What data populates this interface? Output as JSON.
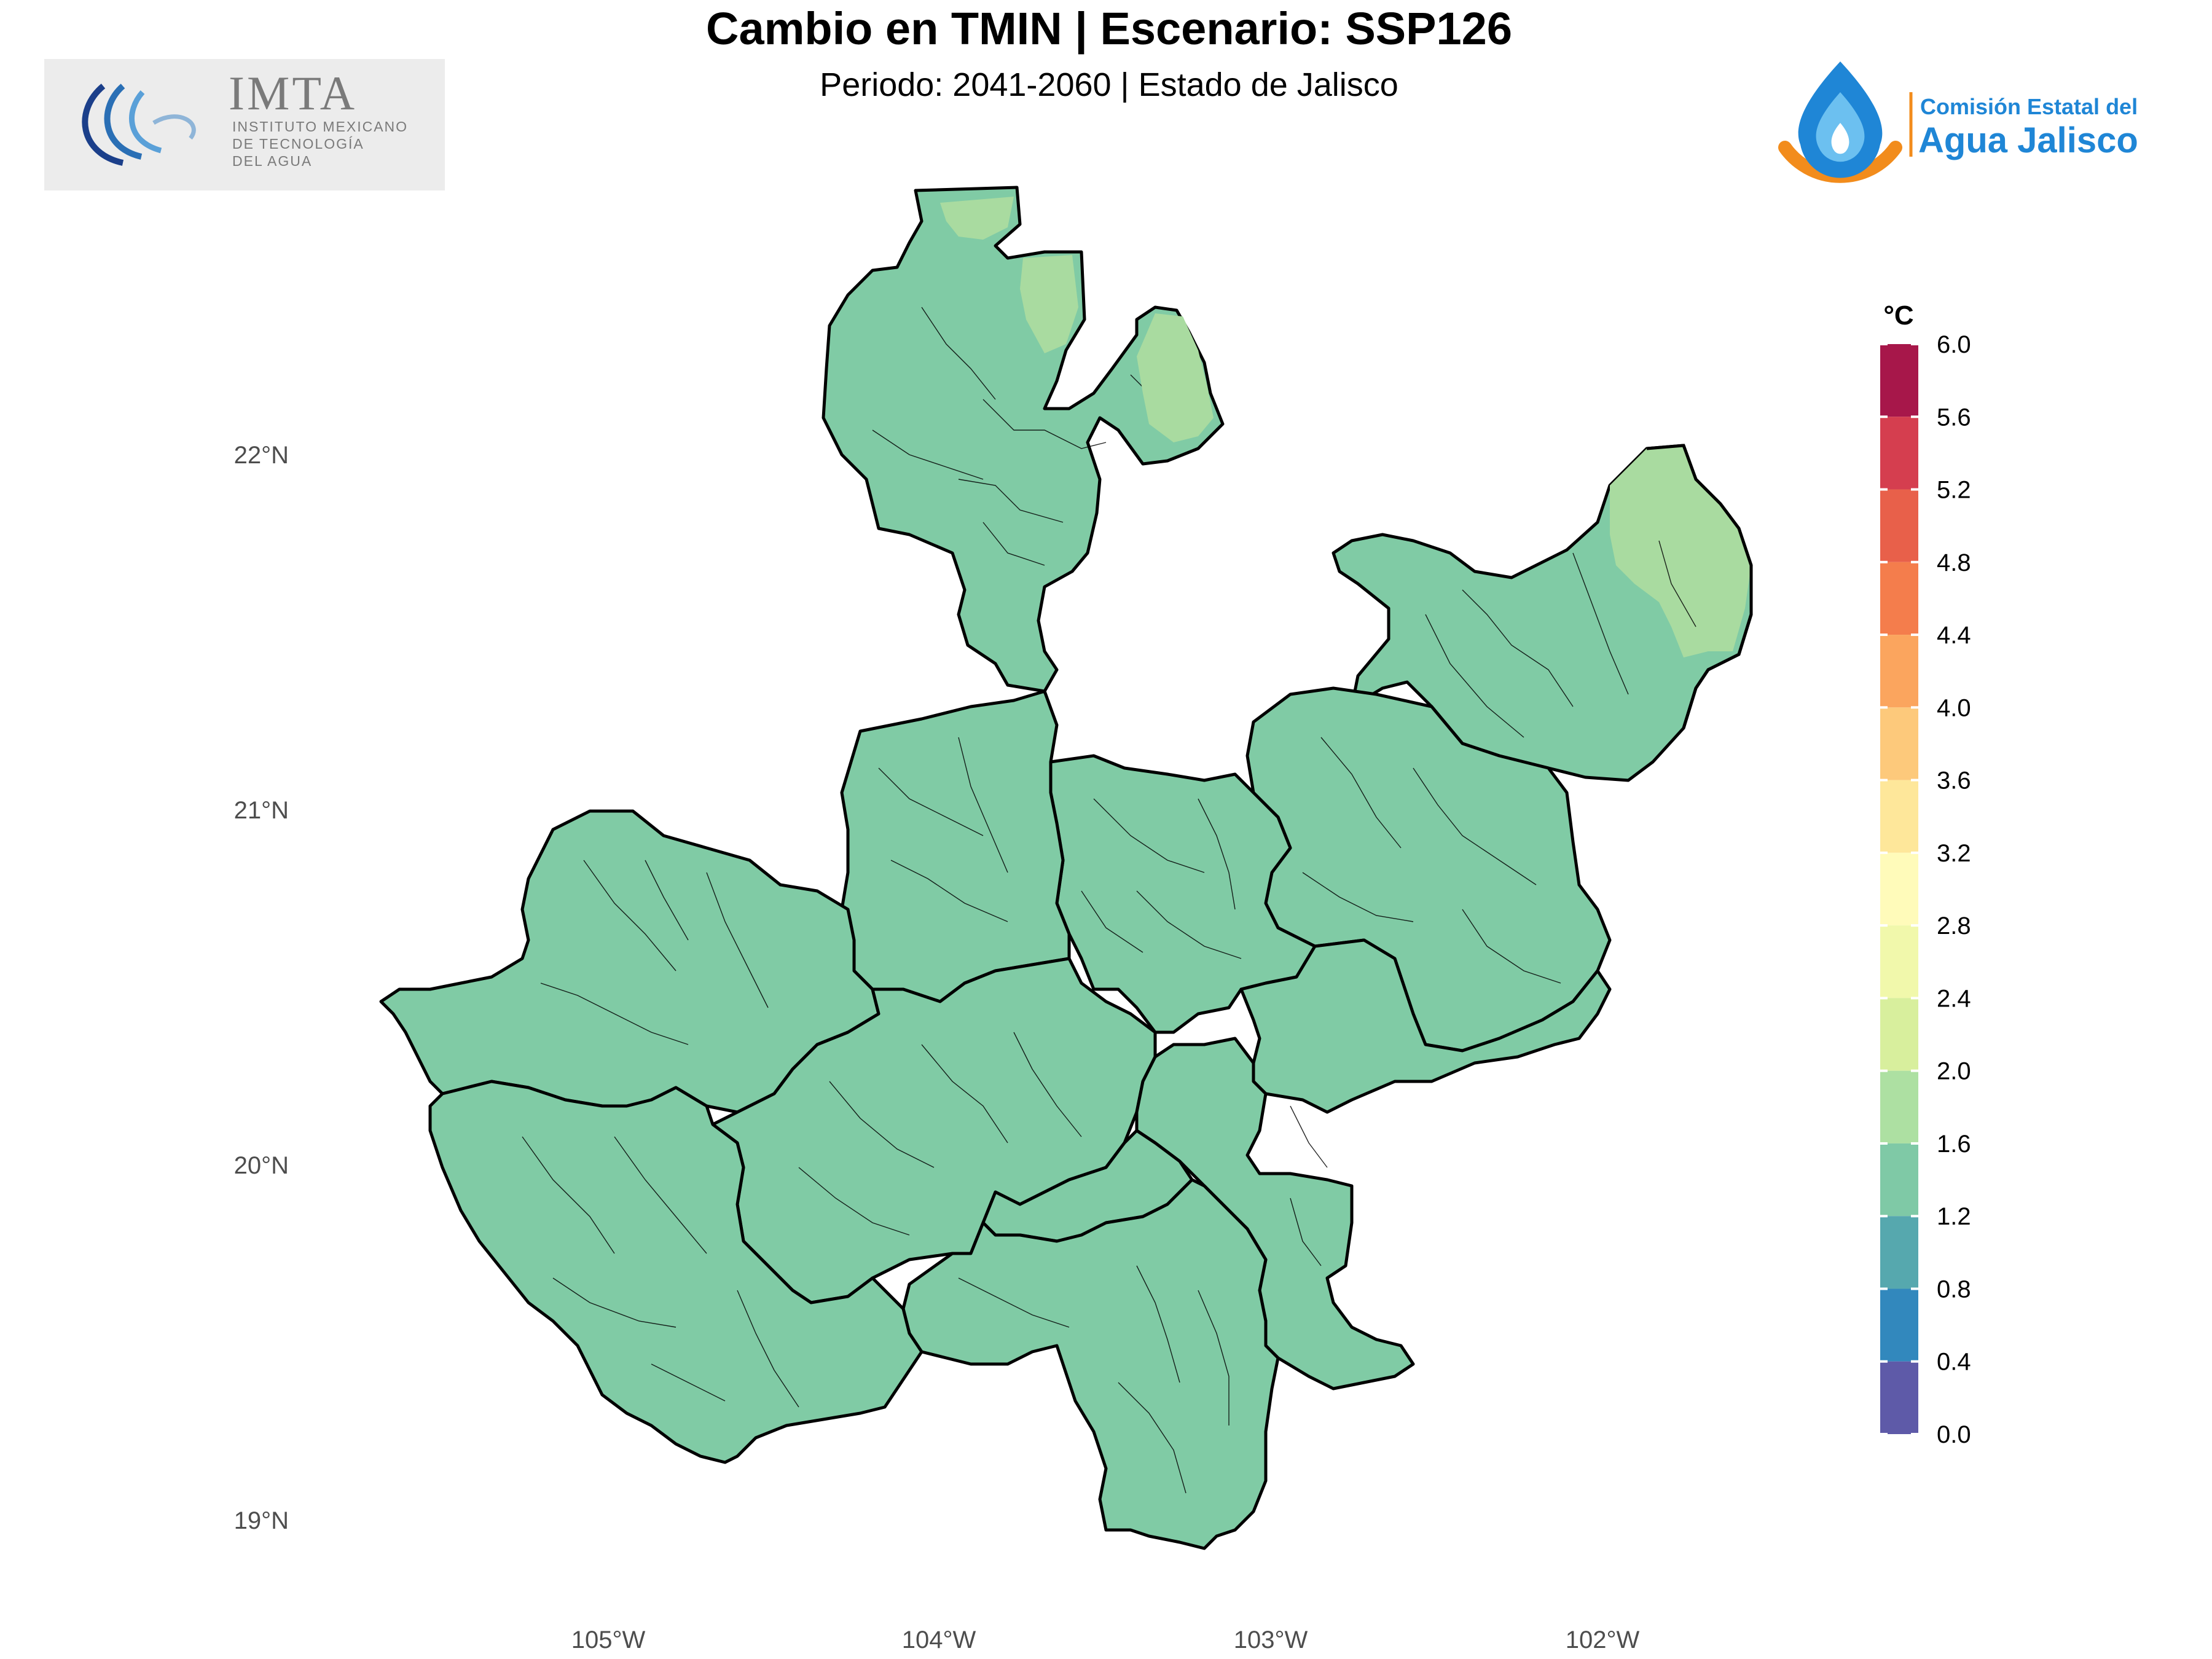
{
  "header": {
    "title": "Cambio en TMIN | Escenario: SSP126",
    "subtitle": "Periodo: 2041-2060 | Estado de Jalisco"
  },
  "logos": {
    "imta": {
      "name": "IMTA",
      "line1": "INSTITUTO MEXICANO",
      "line2": "DE TECNOLOGÍA",
      "line3": "DEL AGUA"
    },
    "cea": {
      "line1": "Comisión Estatal del",
      "line2": "Agua Jalisco"
    }
  },
  "map": {
    "lat_labels": [
      "22°N",
      "21°N",
      "20°N",
      "19°N"
    ],
    "lon_labels": [
      "105°W",
      "104°W",
      "103°W",
      "102°W"
    ],
    "fill_value_range_c": [
      1.2,
      1.6
    ],
    "north_highlight_range_c": [
      1.6,
      2.0
    ]
  },
  "colorbar": {
    "title": "°C",
    "ticks": [
      "6.0",
      "5.6",
      "5.2",
      "4.8",
      "4.4",
      "4.0",
      "3.6",
      "3.2",
      "2.8",
      "2.4",
      "2.0",
      "1.6",
      "1.2",
      "0.8",
      "0.4",
      "0.0"
    ],
    "colors": [
      "#a7174a",
      "#d53e4f",
      "#e8604a",
      "#f47d4c",
      "#fba55e",
      "#fdc97b",
      "#fee79a",
      "#fffbba",
      "#f1f8ab",
      "#d8ef9d",
      "#ade0a2",
      "#7fc9a6",
      "#56a8ae",
      "#3288bd",
      "#5e5aa8"
    ]
  }
}
